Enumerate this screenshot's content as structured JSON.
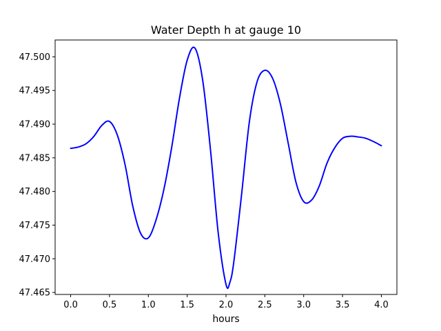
{
  "chart_data": {
    "type": "line",
    "title": "Water Depth h at gauge 10",
    "xlabel": "hours",
    "ylabel": "",
    "xlim": [
      -0.2,
      4.2
    ],
    "ylim": [
      47.4647,
      47.5025
    ],
    "xticks": [
      0.0,
      0.5,
      1.0,
      1.5,
      2.0,
      2.5,
      3.0,
      3.5,
      4.0
    ],
    "xtick_labels": [
      "0.0",
      "0.5",
      "1.0",
      "1.5",
      "2.0",
      "2.5",
      "3.0",
      "3.5",
      "4.0"
    ],
    "yticks": [
      47.465,
      47.47,
      47.475,
      47.48,
      47.485,
      47.49,
      47.495,
      47.5
    ],
    "ytick_labels": [
      "47.465",
      "47.470",
      "47.475",
      "47.480",
      "47.485",
      "47.490",
      "47.495",
      "47.500"
    ],
    "grid": false,
    "series": [
      {
        "color": "#0000ff",
        "x": [
          0.0,
          0.1,
          0.2,
          0.3,
          0.4,
          0.5,
          0.6,
          0.7,
          0.8,
          0.9,
          1.0,
          1.1,
          1.2,
          1.3,
          1.4,
          1.5,
          1.6,
          1.7,
          1.8,
          1.9,
          2.0,
          2.05,
          2.1,
          2.2,
          2.3,
          2.4,
          2.5,
          2.6,
          2.7,
          2.8,
          2.9,
          3.0,
          3.1,
          3.2,
          3.3,
          3.4,
          3.5,
          3.6,
          3.7,
          3.8,
          3.9,
          4.0
        ],
        "y": [
          47.4864,
          47.4866,
          47.4871,
          47.4882,
          47.4898,
          47.4904,
          47.4884,
          47.484,
          47.4778,
          47.4738,
          47.4731,
          47.4758,
          47.4803,
          47.4865,
          47.4938,
          47.4995,
          47.5013,
          47.4965,
          47.4862,
          47.4738,
          47.4662,
          47.4665,
          47.4695,
          47.4795,
          47.4903,
          47.4963,
          47.498,
          47.4968,
          47.493,
          47.4872,
          47.4814,
          47.4785,
          47.4787,
          47.4808,
          47.4842,
          47.4865,
          47.4879,
          47.4882,
          47.4881,
          47.4879,
          47.4874,
          47.4868
        ]
      }
    ]
  }
}
